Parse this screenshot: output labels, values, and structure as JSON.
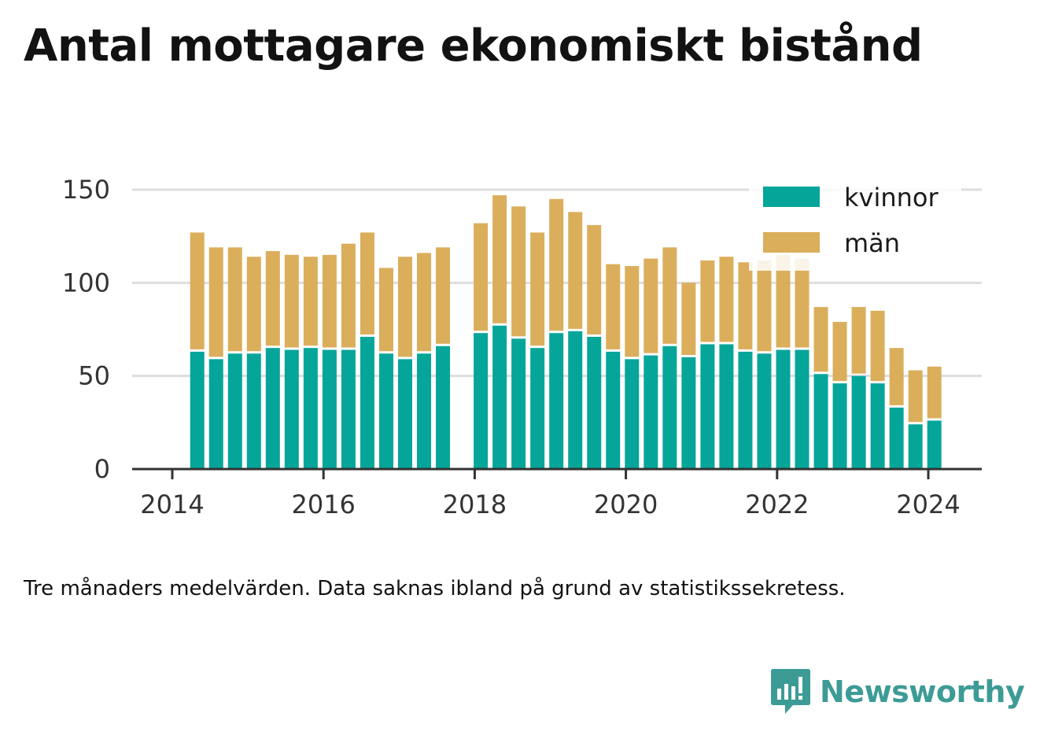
{
  "title": "Antal mottagare ekonomiskt bistånd",
  "note": "Tre månaders medelvärden. Data saknas ibland på grund av statistikssekretess.",
  "brand": {
    "name": "Newsworthy"
  },
  "colors": {
    "kvinnor": "#06a59a",
    "man": "#dbae5c",
    "axis": "#333333",
    "grid": "#dddddd"
  },
  "chart_data": {
    "type": "bar",
    "stacked": true,
    "title": "Antal mottagare ekonomiskt bistånd",
    "xlabel": "",
    "ylabel": "",
    "ylim": [
      0,
      150
    ],
    "yticks": [
      0,
      50,
      100,
      150
    ],
    "xticks": [
      "2014",
      "2016",
      "2018",
      "2020",
      "2022",
      "2024"
    ],
    "xlim": [
      2014,
      2024.7
    ],
    "grid": true,
    "legend_position": "top-right",
    "x": [
      2014.33,
      2014.58,
      2014.83,
      2015.08,
      2015.33,
      2015.58,
      2015.83,
      2016.08,
      2016.33,
      2016.58,
      2016.83,
      2017.08,
      2017.33,
      2017.58,
      2018.08,
      2018.33,
      2018.58,
      2018.83,
      2019.08,
      2019.33,
      2019.58,
      2019.83,
      2020.08,
      2020.33,
      2020.58,
      2020.83,
      2021.08,
      2021.33,
      2021.58,
      2021.83,
      2022.08,
      2022.33,
      2022.58,
      2022.83,
      2023.08,
      2023.33,
      2023.58,
      2023.83,
      2024.08
    ],
    "series": [
      {
        "name": "kvinnor",
        "values": [
          63,
          59,
          62,
          62,
          65,
          64,
          65,
          64,
          64,
          71,
          62,
          59,
          62,
          66,
          73,
          77,
          70,
          65,
          73,
          74,
          71,
          63,
          59,
          61,
          66,
          60,
          67,
          67,
          63,
          62,
          64,
          64,
          51,
          46,
          50,
          46,
          33,
          24,
          26
        ]
      },
      {
        "name": "män",
        "values": [
          64,
          60,
          57,
          52,
          52,
          51,
          49,
          51,
          57,
          56,
          46,
          55,
          54,
          53,
          59,
          70,
          71,
          62,
          72,
          64,
          60,
          47,
          50,
          52,
          53,
          40,
          45,
          47,
          48,
          50,
          51,
          49,
          36,
          33,
          37,
          39,
          32,
          29,
          29
        ]
      }
    ]
  }
}
